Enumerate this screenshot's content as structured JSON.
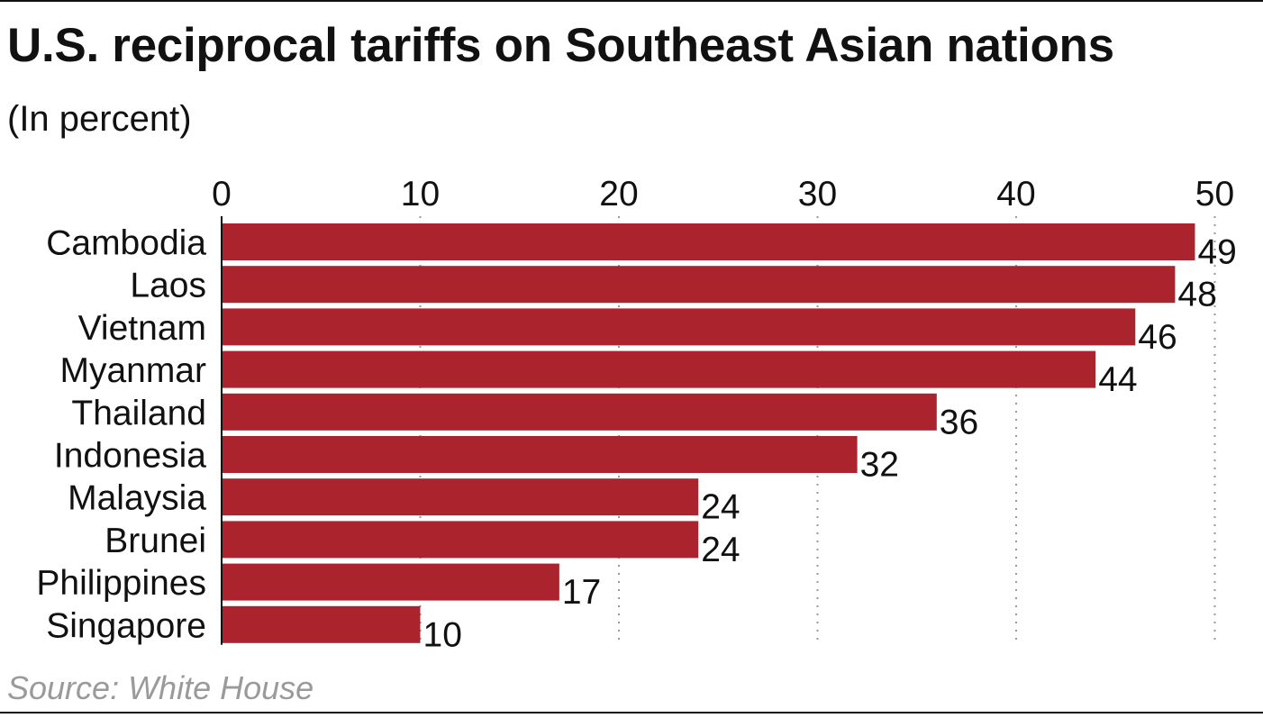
{
  "title": "U.S. reciprocal tariffs on Southeast Asian nations",
  "subtitle": "(In percent)",
  "source": "Source: White House",
  "chart_data": {
    "type": "bar",
    "orientation": "horizontal",
    "title": "U.S. reciprocal tariffs on Southeast Asian nations",
    "subtitle": "(In percent)",
    "xlabel": "",
    "ylabel": "",
    "categories": [
      "Cambodia",
      "Laos",
      "Vietnam",
      "Myanmar",
      "Thailand",
      "Indonesia",
      "Malaysia",
      "Brunei",
      "Philippines",
      "Singapore"
    ],
    "values": [
      49,
      48,
      46,
      44,
      36,
      32,
      24,
      24,
      17,
      10
    ],
    "xlim": [
      0,
      50
    ],
    "xticks": [
      0,
      10,
      20,
      30,
      40,
      50
    ],
    "x_axis_position": "top",
    "grid": "vertical dotted",
    "bar_color": "#AA232D",
    "grid_color": "#9a9a9a",
    "source": "Source: White House"
  }
}
